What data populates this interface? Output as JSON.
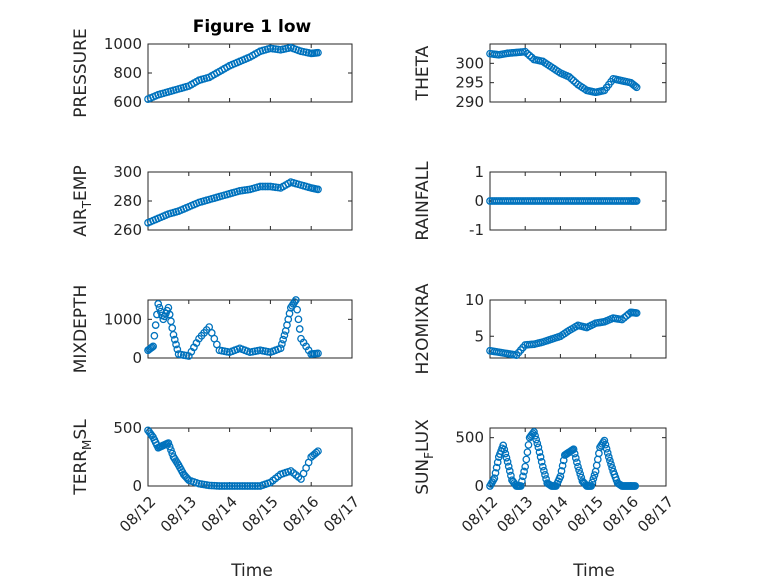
{
  "window": {
    "title": "Figure 1 low"
  },
  "x_tick_labels": [
    "08/12",
    "08/13",
    "08/14",
    "08/15",
    "08/16",
    "08/17"
  ],
  "marker_color": "#0072BD",
  "chart_data": [
    {
      "id": "pressure",
      "type": "scatter",
      "title": "Figure 1 low",
      "ylabel": "PRESSURE",
      "xlabel": "",
      "xlim": [
        "08/12",
        "08/17"
      ],
      "ylim": [
        600,
        1000
      ],
      "yticks": [
        600,
        800,
        1000
      ],
      "show_x_ticklabels": false,
      "x": [
        "08/12 00:00",
        "08/12 06:00",
        "08/12 12:00",
        "08/12 18:00",
        "08/13 00:00",
        "08/13 06:00",
        "08/13 12:00",
        "08/13 18:00",
        "08/14 00:00",
        "08/14 06:00",
        "08/14 12:00",
        "08/14 18:00",
        "08/15 00:00",
        "08/15 06:00",
        "08/15 12:00",
        "08/15 18:00",
        "08/16 00:00",
        "08/16 04:00"
      ],
      "y": [
        620,
        650,
        670,
        690,
        710,
        750,
        770,
        810,
        850,
        880,
        910,
        950,
        970,
        960,
        975,
        950,
        935,
        940
      ]
    },
    {
      "id": "theta",
      "type": "scatter",
      "title": "",
      "ylabel": "THETA",
      "xlabel": "",
      "xlim": [
        "08/12",
        "08/17"
      ],
      "ylim": [
        290,
        305
      ],
      "yticks": [
        290,
        295,
        300
      ],
      "show_x_ticklabels": false,
      "x": [
        "08/12 00:00",
        "08/12 06:00",
        "08/12 12:00",
        "08/12 18:00",
        "08/13 00:00",
        "08/13 06:00",
        "08/13 12:00",
        "08/13 18:00",
        "08/14 00:00",
        "08/14 06:00",
        "08/14 12:00",
        "08/14 18:00",
        "08/15 00:00",
        "08/15 06:00",
        "08/15 12:00",
        "08/15 18:00",
        "08/16 00:00",
        "08/16 04:00"
      ],
      "y": [
        302.5,
        302.2,
        302.6,
        302.8,
        303.0,
        301.0,
        300.5,
        299.0,
        297.5,
        296.5,
        294.5,
        293.0,
        292.5,
        293.0,
        296.0,
        295.5,
        295.0,
        293.8
      ]
    },
    {
      "id": "air_temp",
      "type": "scatter",
      "title": "",
      "ylabel": "AIR_TEMP",
      "ylabel_display": {
        "main": "AIR",
        "sub": "T",
        "rest": "EMP"
      },
      "xlabel": "",
      "xlim": [
        "08/12",
        "08/17"
      ],
      "ylim": [
        260,
        300
      ],
      "yticks": [
        260,
        280,
        300
      ],
      "show_x_ticklabels": false,
      "x": [
        "08/12 00:00",
        "08/12 06:00",
        "08/12 12:00",
        "08/12 18:00",
        "08/13 00:00",
        "08/13 06:00",
        "08/13 12:00",
        "08/13 18:00",
        "08/14 00:00",
        "08/14 06:00",
        "08/14 12:00",
        "08/14 18:00",
        "08/15 00:00",
        "08/15 06:00",
        "08/15 12:00",
        "08/15 18:00",
        "08/16 00:00",
        "08/16 04:00"
      ],
      "y": [
        265,
        268,
        271,
        273,
        276,
        279,
        281,
        283,
        285,
        287,
        288,
        290,
        290,
        289,
        293,
        291,
        289,
        288
      ]
    },
    {
      "id": "rainfall",
      "type": "scatter",
      "title": "",
      "ylabel": "RAINFALL",
      "xlabel": "",
      "xlim": [
        "08/12",
        "08/17"
      ],
      "ylim": [
        -1,
        1
      ],
      "yticks": [
        -1,
        0,
        1
      ],
      "show_x_ticklabels": false,
      "x": [
        "08/12 00:00",
        "08/12 06:00",
        "08/12 12:00",
        "08/12 18:00",
        "08/13 00:00",
        "08/13 06:00",
        "08/13 12:00",
        "08/13 18:00",
        "08/14 00:00",
        "08/14 06:00",
        "08/14 12:00",
        "08/14 18:00",
        "08/15 00:00",
        "08/15 06:00",
        "08/15 12:00",
        "08/15 18:00",
        "08/16 00:00",
        "08/16 04:00"
      ],
      "y": [
        0,
        0,
        0,
        0,
        0,
        0,
        0,
        0,
        0,
        0,
        0,
        0,
        0,
        0,
        0,
        0,
        0,
        0
      ]
    },
    {
      "id": "mixdepth",
      "type": "scatter",
      "title": "",
      "ylabel": "MIXDEPTH",
      "xlabel": "",
      "xlim": [
        "08/12",
        "08/17"
      ],
      "ylim": [
        0,
        1500
      ],
      "yticks": [
        0,
        1000
      ],
      "show_x_ticklabels": false,
      "x": [
        "08/12 00:00",
        "08/12 03:00",
        "08/12 06:00",
        "08/12 09:00",
        "08/12 12:00",
        "08/12 15:00",
        "08/12 18:00",
        "08/13 00:00",
        "08/13 06:00",
        "08/13 12:00",
        "08/13 18:00",
        "08/14 00:00",
        "08/14 06:00",
        "08/14 12:00",
        "08/14 18:00",
        "08/15 00:00",
        "08/15 06:00",
        "08/15 09:00",
        "08/15 12:00",
        "08/15 15:00",
        "08/15 18:00",
        "08/16 00:00",
        "08/16 04:00"
      ],
      "y": [
        200,
        300,
        1400,
        1000,
        1300,
        600,
        100,
        50,
        500,
        800,
        200,
        150,
        250,
        150,
        200,
        150,
        250,
        700,
        1300,
        1500,
        500,
        100,
        120
      ]
    },
    {
      "id": "h2omixra",
      "type": "scatter",
      "title": "",
      "ylabel": "H2OMIXRA",
      "xlabel": "",
      "xlim": [
        "08/12",
        "08/17"
      ],
      "ylim": [
        2,
        10
      ],
      "yticks": [
        5,
        10
      ],
      "show_x_ticklabels": false,
      "x": [
        "08/12 00:00",
        "08/12 06:00",
        "08/12 12:00",
        "08/12 18:00",
        "08/13 00:00",
        "08/13 06:00",
        "08/13 12:00",
        "08/13 18:00",
        "08/14 00:00",
        "08/14 06:00",
        "08/14 12:00",
        "08/14 18:00",
        "08/15 00:00",
        "08/15 06:00",
        "08/15 12:00",
        "08/15 18:00",
        "08/16 00:00",
        "08/16 04:00"
      ],
      "y": [
        3.0,
        2.8,
        2.6,
        2.4,
        3.8,
        3.9,
        4.2,
        4.6,
        5.0,
        5.8,
        6.5,
        6.2,
        6.8,
        7.0,
        7.5,
        7.3,
        8.3,
        8.2
      ]
    },
    {
      "id": "terr_msl",
      "type": "scatter",
      "title": "",
      "ylabel": "TERR_MSL",
      "ylabel_display": {
        "main": "TERR",
        "sub": "M",
        "rest": "SL"
      },
      "xlabel": "",
      "xlim": [
        "08/12",
        "08/17"
      ],
      "ylim": [
        0,
        500
      ],
      "yticks": [
        0,
        500
      ],
      "show_x_ticklabels": true,
      "x": [
        "08/12 00:00",
        "08/12 03:00",
        "08/12 06:00",
        "08/12 09:00",
        "08/12 12:00",
        "08/12 15:00",
        "08/12 18:00",
        "08/12 21:00",
        "08/13 00:00",
        "08/13 06:00",
        "08/13 12:00",
        "08/13 18:00",
        "08/14 00:00",
        "08/14 06:00",
        "08/14 12:00",
        "08/14 18:00",
        "08/15 00:00",
        "08/15 06:00",
        "08/15 12:00",
        "08/15 18:00",
        "08/16 00:00",
        "08/16 04:00"
      ],
      "y": [
        480,
        420,
        330,
        350,
        370,
        250,
        180,
        100,
        50,
        20,
        5,
        0,
        0,
        0,
        0,
        0,
        30,
        100,
        130,
        60,
        250,
        300
      ]
    },
    {
      "id": "sun_flux",
      "type": "scatter",
      "title": "",
      "ylabel": "SUN_FLUX",
      "ylabel_display": {
        "main": "SUN",
        "sub": "F",
        "rest": "LUX"
      },
      "xlabel": "",
      "xlim": [
        "08/12",
        "08/17"
      ],
      "ylim": [
        0,
        600
      ],
      "yticks": [
        0,
        500
      ],
      "show_x_ticklabels": true,
      "x": [
        "08/12 00:00",
        "08/12 03:00",
        "08/12 06:00",
        "08/12 09:00",
        "08/12 12:00",
        "08/12 15:00",
        "08/12 18:00",
        "08/12 21:00",
        "08/13 00:00",
        "08/13 03:00",
        "08/13 06:00",
        "08/13 09:00",
        "08/13 12:00",
        "08/13 15:00",
        "08/13 18:00",
        "08/13 21:00",
        "08/14 00:00",
        "08/14 03:00",
        "08/14 06:00",
        "08/14 09:00",
        "08/14 12:00",
        "08/14 15:00",
        "08/14 18:00",
        "08/14 21:00",
        "08/15 00:00",
        "08/15 03:00",
        "08/15 06:00",
        "08/15 09:00",
        "08/15 12:00",
        "08/15 15:00",
        "08/15 18:00",
        "08/15 21:00",
        "08/16 00:00",
        "08/16 03:00"
      ],
      "y": [
        0,
        80,
        300,
        420,
        250,
        60,
        0,
        0,
        200,
        500,
        560,
        400,
        200,
        30,
        0,
        0,
        100,
        320,
        350,
        380,
        200,
        50,
        0,
        0,
        150,
        400,
        470,
        300,
        150,
        30,
        0,
        0,
        0,
        0
      ]
    }
  ],
  "shared_xlabel": [
    "Time",
    "Time"
  ]
}
